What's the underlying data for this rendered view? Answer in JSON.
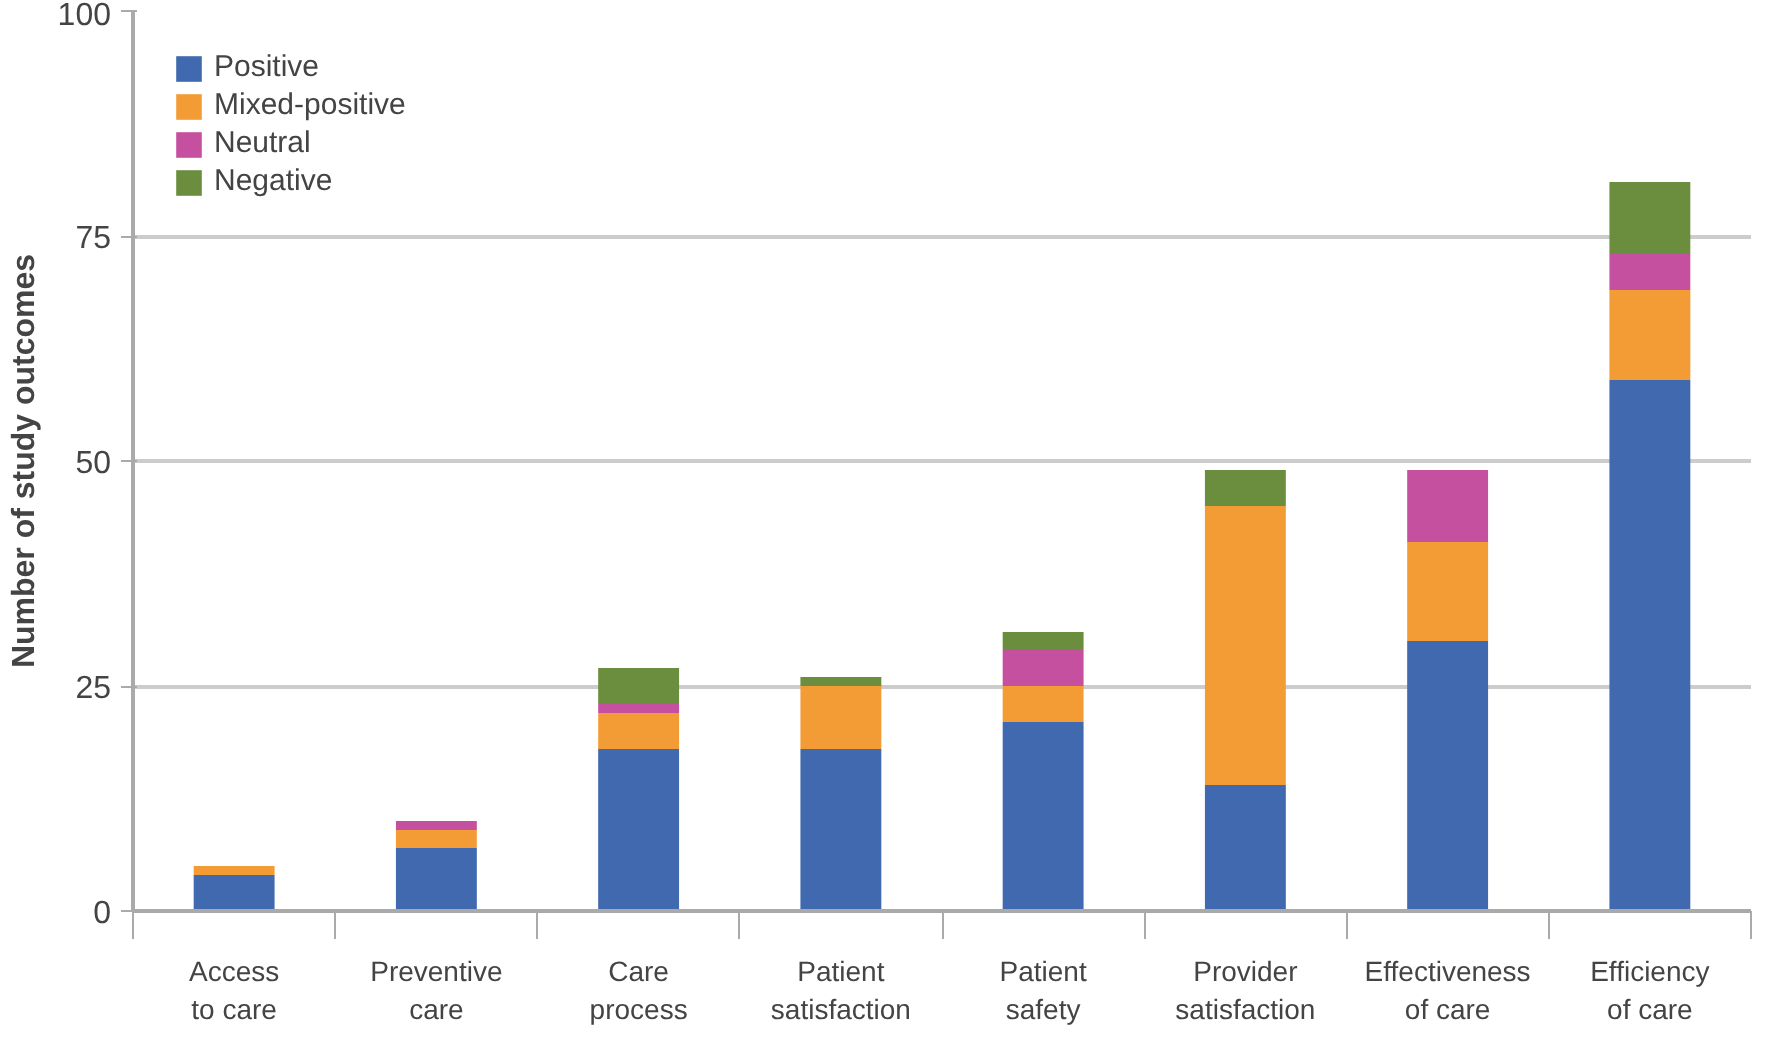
{
  "chart_data": {
    "type": "bar",
    "stacked": true,
    "ylabel": "Number of study outcomes",
    "categories": [
      "Access to care",
      "Preventive care",
      "Care process",
      "Patient satisfaction",
      "Patient safety",
      "Provider satisfaction",
      "Effectiveness of care",
      "Efficiency of care"
    ],
    "series": [
      {
        "name": "Positive",
        "color": "#4169b0",
        "values": [
          4,
          7,
          18,
          18,
          21,
          14,
          30,
          59
        ]
      },
      {
        "name": "Mixed-positive",
        "color": "#f39c35",
        "values": [
          1,
          2,
          4,
          7,
          4,
          31,
          11,
          10
        ]
      },
      {
        "name": "Neutral",
        "color": "#c550a0",
        "values": [
          0,
          1,
          1,
          0,
          4,
          0,
          8,
          4
        ]
      },
      {
        "name": "Negative",
        "color": "#6b8e3e",
        "values": [
          0,
          0,
          4,
          1,
          2,
          4,
          0,
          8
        ]
      }
    ],
    "ylim": [
      0,
      100
    ],
    "yticks": [
      0,
      25,
      50,
      75,
      100
    ],
    "grid": "y",
    "legend": "top left"
  }
}
